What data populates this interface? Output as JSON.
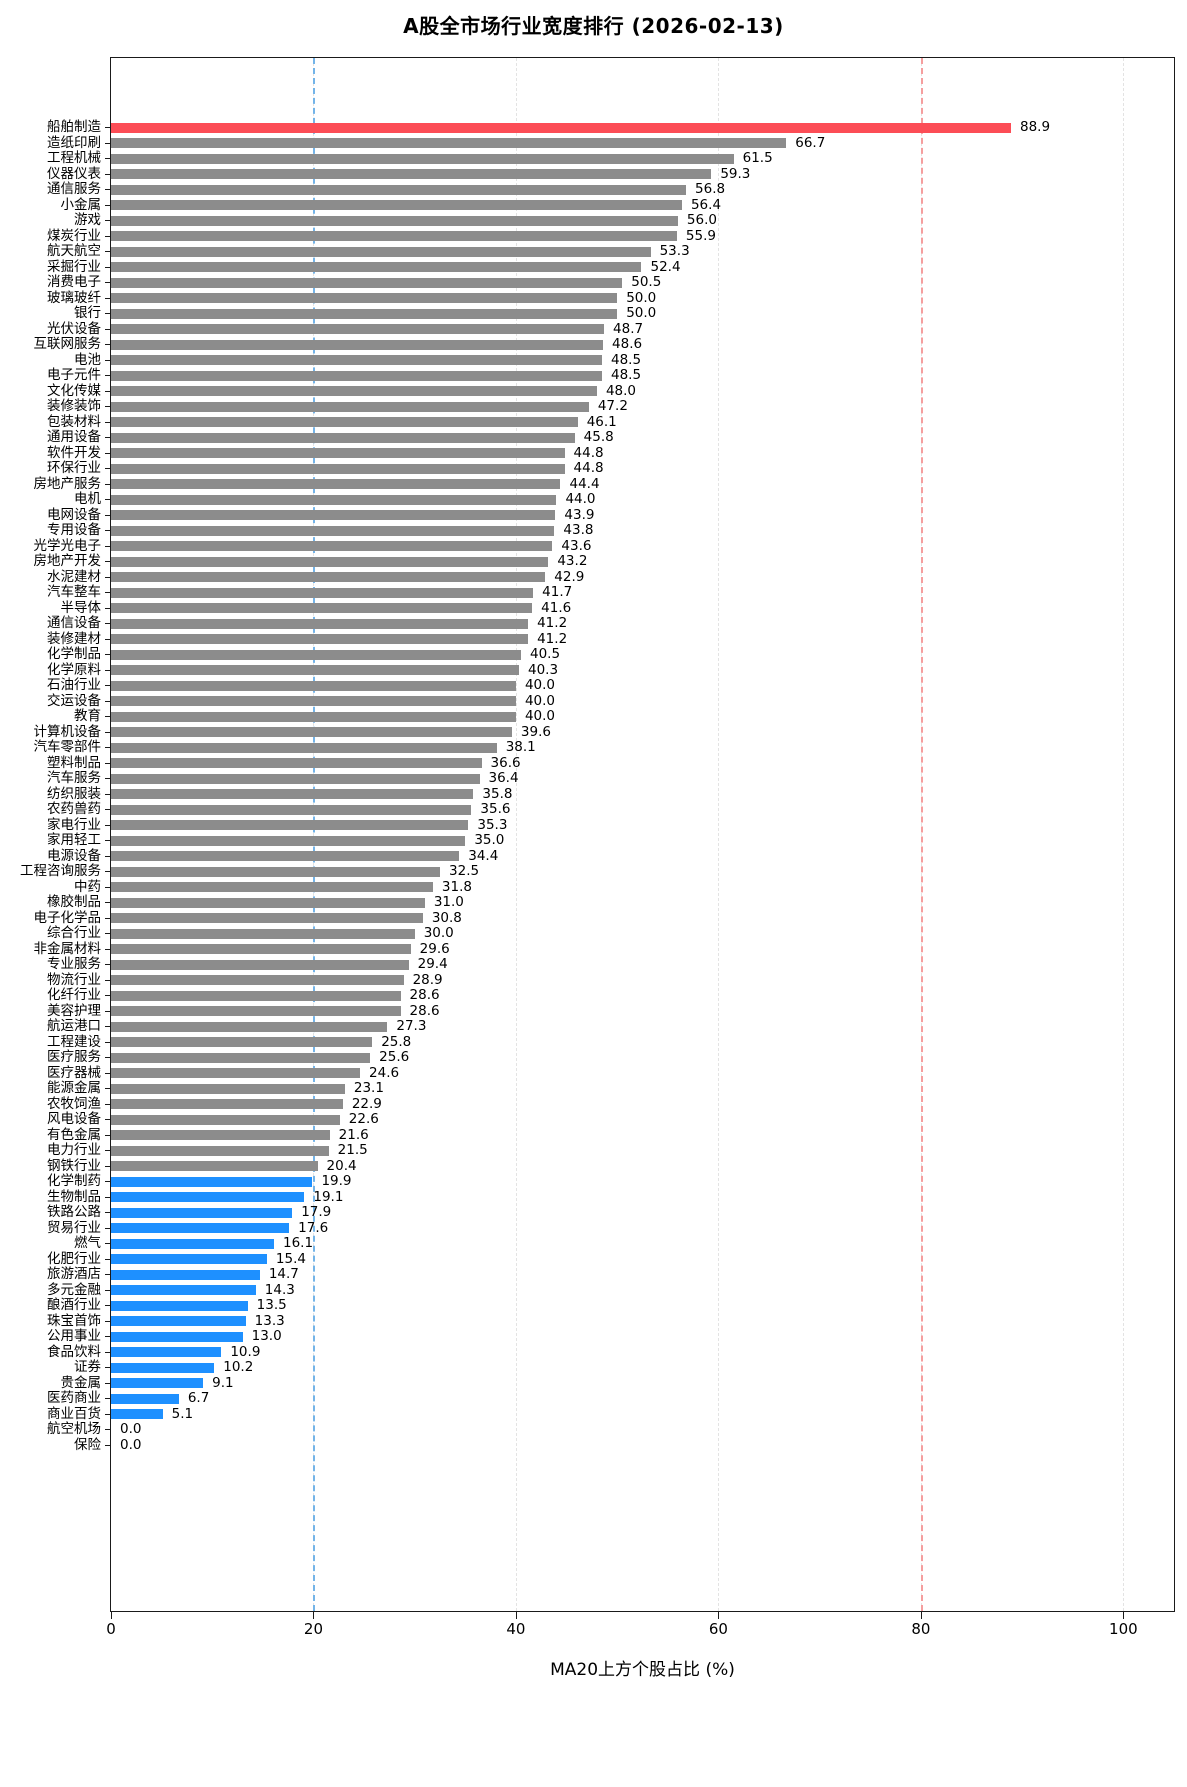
{
  "chart_data": {
    "type": "bar",
    "orientation": "horizontal",
    "title": "A股全市场行业宽度排行 (2026-02-13)",
    "xlabel": "MA20上方个股占比 (%)",
    "xlim": [
      0,
      105
    ],
    "xticks": [
      0,
      20,
      40,
      60,
      80,
      100
    ],
    "grid": "vertical-dashed",
    "legend": "none",
    "thresholds": [
      {
        "value": 20,
        "color": "#74b4e8"
      },
      {
        "value": 80,
        "color": "#f59e9e"
      }
    ],
    "colors": {
      "high": "#fc4d56",
      "mid": "#8c8c8c",
      "low": "#1e90ff"
    },
    "color_rules": {
      "high_min": 80,
      "low_max": 20
    },
    "categories": [
      "船舶制造",
      "造纸印刷",
      "工程机械",
      "仪器仪表",
      "通信服务",
      "小金属",
      "游戏",
      "煤炭行业",
      "航天航空",
      "采掘行业",
      "消费电子",
      "玻璃玻纤",
      "银行",
      "光伏设备",
      "互联网服务",
      "电池",
      "电子元件",
      "文化传媒",
      "装修装饰",
      "包装材料",
      "通用设备",
      "软件开发",
      "环保行业",
      "房地产服务",
      "电机",
      "电网设备",
      "专用设备",
      "光学光电子",
      "房地产开发",
      "水泥建材",
      "汽车整车",
      "半导体",
      "通信设备",
      "装修建材",
      "化学制品",
      "化学原料",
      "石油行业",
      "交运设备",
      "教育",
      "计算机设备",
      "汽车零部件",
      "塑料制品",
      "汽车服务",
      "纺织服装",
      "农药兽药",
      "家电行业",
      "家用轻工",
      "电源设备",
      "工程咨询服务",
      "中药",
      "橡胶制品",
      "电子化学品",
      "综合行业",
      "非金属材料",
      "专业服务",
      "物流行业",
      "化纤行业",
      "美容护理",
      "航运港口",
      "工程建设",
      "医疗服务",
      "医疗器械",
      "能源金属",
      "农牧饲渔",
      "风电设备",
      "有色金属",
      "电力行业",
      "钢铁行业",
      "化学制药",
      "生物制品",
      "铁路公路",
      "贸易行业",
      "燃气",
      "化肥行业",
      "旅游酒店",
      "多元金融",
      "酿酒行业",
      "珠宝首饰",
      "公用事业",
      "食品饮料",
      "证券",
      "贵金属",
      "医药商业",
      "商业百货",
      "航空机场",
      "保险"
    ],
    "values": [
      88.9,
      66.7,
      61.5,
      59.3,
      56.8,
      56.4,
      56.0,
      55.9,
      53.3,
      52.4,
      50.5,
      50.0,
      50.0,
      48.7,
      48.6,
      48.5,
      48.5,
      48.0,
      47.2,
      46.1,
      45.8,
      44.8,
      44.8,
      44.4,
      44.0,
      43.9,
      43.8,
      43.6,
      43.2,
      42.9,
      41.7,
      41.6,
      41.2,
      41.2,
      40.5,
      40.3,
      40.0,
      40.0,
      40.0,
      39.6,
      38.1,
      36.6,
      36.4,
      35.8,
      35.6,
      35.3,
      35.0,
      34.4,
      32.5,
      31.8,
      31.0,
      30.8,
      30.0,
      29.6,
      29.4,
      28.9,
      28.6,
      28.6,
      27.3,
      25.8,
      25.6,
      24.6,
      23.1,
      22.9,
      22.6,
      21.6,
      21.5,
      20.4,
      19.9,
      19.1,
      17.9,
      17.6,
      16.1,
      15.4,
      14.7,
      14.3,
      13.5,
      13.3,
      13.0,
      10.9,
      10.2,
      9.1,
      6.7,
      5.1,
      0.0,
      0.0
    ]
  }
}
